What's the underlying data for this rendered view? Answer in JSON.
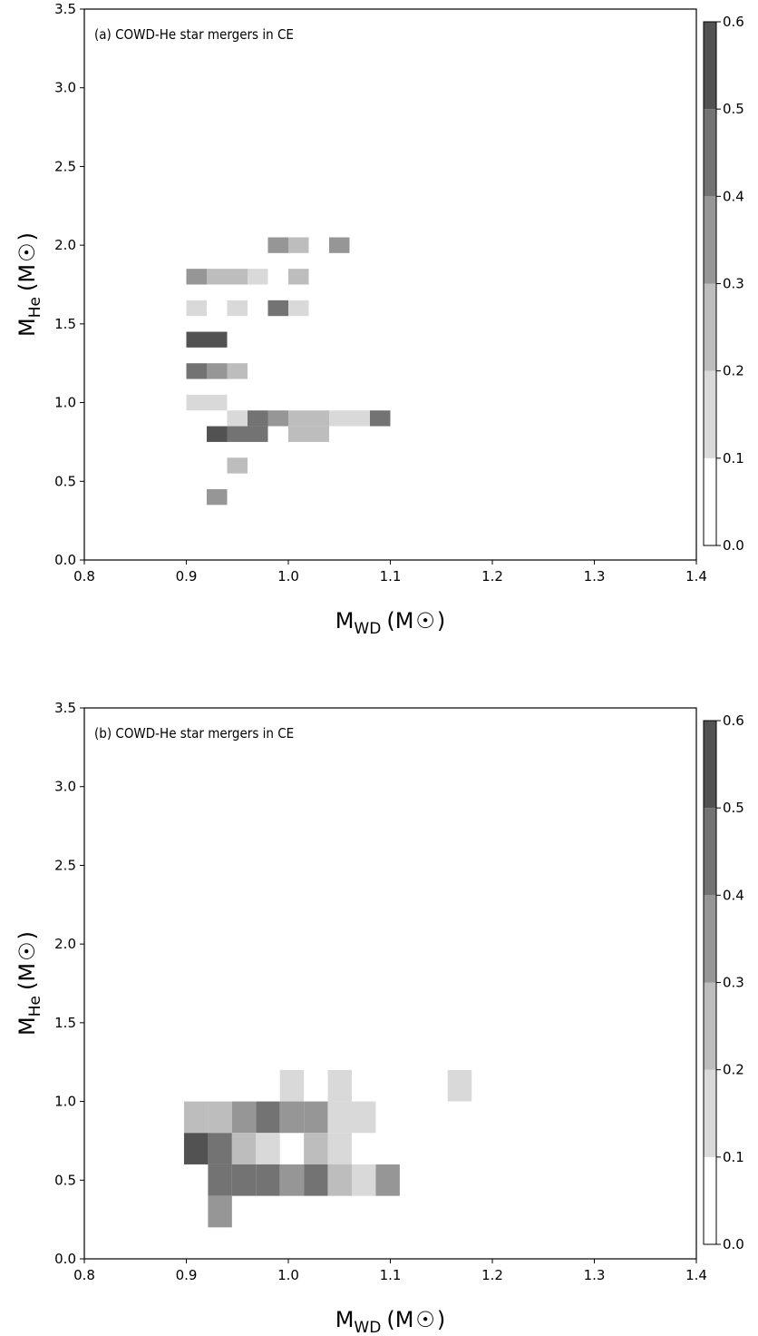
{
  "colorbar": {
    "levels": [
      0.0,
      0.1,
      0.2,
      0.3,
      0.4,
      0.5,
      0.6
    ],
    "tick_labels": [
      "0.0",
      "0.1",
      "0.2",
      "0.3",
      "0.4",
      "0.5",
      "0.6"
    ],
    "colors": [
      "#ffffff",
      "#d9d9d9",
      "#bdbdbd",
      "#969696",
      "#737373",
      "#525252",
      "#000000"
    ]
  },
  "chart_data": [
    {
      "type": "heatmap",
      "title": "(a) COWD-He star mergers in CE",
      "xlabel": "M",
      "xlabel_sub": "WD",
      "xlabel_unit": "(M",
      "ylabel": "M",
      "ylabel_sub": "He",
      "ylabel_unit": "(M",
      "xlim": [
        0.8,
        1.4
      ],
      "ylim": [
        0.0,
        3.5
      ],
      "x_ticks": [
        "0.8",
        "0.9",
        "1.0",
        "1.1",
        "1.2",
        "1.3",
        "1.4"
      ],
      "y_ticks": [
        "0.0",
        "0.5",
        "1.0",
        "1.5",
        "2.0",
        "2.5",
        "3.0",
        "3.5"
      ],
      "x_bin_width": 0.02,
      "y_bin_height": 0.1,
      "cells": [
        {
          "x": 0.99,
          "y": 2.0,
          "v": 0.35
        },
        {
          "x": 1.01,
          "y": 2.0,
          "v": 0.25
        },
        {
          "x": 1.05,
          "y": 2.0,
          "v": 0.35
        },
        {
          "x": 0.91,
          "y": 1.8,
          "v": 0.35
        },
        {
          "x": 0.93,
          "y": 1.8,
          "v": 0.25
        },
        {
          "x": 0.95,
          "y": 1.8,
          "v": 0.25
        },
        {
          "x": 0.97,
          "y": 1.8,
          "v": 0.15
        },
        {
          "x": 1.01,
          "y": 1.8,
          "v": 0.25
        },
        {
          "x": 0.91,
          "y": 1.6,
          "v": 0.15
        },
        {
          "x": 0.95,
          "y": 1.6,
          "v": 0.15
        },
        {
          "x": 0.99,
          "y": 1.6,
          "v": 0.45
        },
        {
          "x": 1.01,
          "y": 1.6,
          "v": 0.15
        },
        {
          "x": 0.91,
          "y": 1.4,
          "v": 0.55
        },
        {
          "x": 0.93,
          "y": 1.4,
          "v": 0.55
        },
        {
          "x": 0.91,
          "y": 1.2,
          "v": 0.4
        },
        {
          "x": 0.93,
          "y": 1.2,
          "v": 0.35
        },
        {
          "x": 0.95,
          "y": 1.2,
          "v": 0.25
        },
        {
          "x": 0.91,
          "y": 1.0,
          "v": 0.15
        },
        {
          "x": 0.93,
          "y": 1.0,
          "v": 0.15
        },
        {
          "x": 0.95,
          "y": 0.9,
          "v": 0.15
        },
        {
          "x": 0.97,
          "y": 0.9,
          "v": 0.4
        },
        {
          "x": 0.99,
          "y": 0.9,
          "v": 0.35
        },
        {
          "x": 1.01,
          "y": 0.9,
          "v": 0.25
        },
        {
          "x": 1.03,
          "y": 0.9,
          "v": 0.25
        },
        {
          "x": 1.05,
          "y": 0.9,
          "v": 0.15
        },
        {
          "x": 1.07,
          "y": 0.9,
          "v": 0.15
        },
        {
          "x": 1.09,
          "y": 0.9,
          "v": 0.4
        },
        {
          "x": 0.93,
          "y": 0.8,
          "v": 0.55
        },
        {
          "x": 0.95,
          "y": 0.8,
          "v": 0.4
        },
        {
          "x": 0.97,
          "y": 0.8,
          "v": 0.45
        },
        {
          "x": 1.01,
          "y": 0.8,
          "v": 0.25
        },
        {
          "x": 1.03,
          "y": 0.8,
          "v": 0.25
        },
        {
          "x": 0.95,
          "y": 0.6,
          "v": 0.25
        },
        {
          "x": 0.93,
          "y": 0.4,
          "v": 0.35
        }
      ]
    },
    {
      "type": "heatmap",
      "title": "(b) COWD-He star mergers in CE",
      "xlabel": "M",
      "xlabel_sub": "WD",
      "xlabel_unit": "(M",
      "ylabel": "M",
      "ylabel_sub": "He",
      "ylabel_unit": "(M",
      "xlim": [
        0.8,
        1.4
      ],
      "ylim": [
        0.0,
        3.5
      ],
      "x_ticks": [
        "0.8",
        "0.9",
        "1.0",
        "1.1",
        "1.2",
        "1.3",
        "1.4"
      ],
      "y_ticks": [
        "0.0",
        "0.5",
        "1.0",
        "1.5",
        "2.0",
        "2.5",
        "3.0",
        "3.5"
      ],
      "x_bin_width": 0.0235,
      "y_bin_height": 0.2,
      "cells": [
        {
          "x": 1.0035,
          "y": 1.1,
          "v": 0.15
        },
        {
          "x": 1.0505,
          "y": 1.1,
          "v": 0.15
        },
        {
          "x": 1.168,
          "y": 1.1,
          "v": 0.15
        },
        {
          "x": 0.9095,
          "y": 0.9,
          "v": 0.25
        },
        {
          "x": 0.933,
          "y": 0.9,
          "v": 0.25
        },
        {
          "x": 0.9565,
          "y": 0.9,
          "v": 0.35
        },
        {
          "x": 0.98,
          "y": 0.9,
          "v": 0.4
        },
        {
          "x": 1.0035,
          "y": 0.9,
          "v": 0.35
        },
        {
          "x": 1.027,
          "y": 0.9,
          "v": 0.3
        },
        {
          "x": 1.0505,
          "y": 0.9,
          "v": 0.15
        },
        {
          "x": 1.074,
          "y": 0.9,
          "v": 0.15
        },
        {
          "x": 0.9095,
          "y": 0.7,
          "v": 0.55
        },
        {
          "x": 0.933,
          "y": 0.7,
          "v": 0.45
        },
        {
          "x": 0.9565,
          "y": 0.7,
          "v": 0.25
        },
        {
          "x": 0.98,
          "y": 0.7,
          "v": 0.15
        },
        {
          "x": 1.027,
          "y": 0.7,
          "v": 0.25
        },
        {
          "x": 1.0505,
          "y": 0.7,
          "v": 0.15
        },
        {
          "x": 0.933,
          "y": 0.5,
          "v": 0.45
        },
        {
          "x": 0.9565,
          "y": 0.5,
          "v": 0.4
        },
        {
          "x": 0.98,
          "y": 0.5,
          "v": 0.4
        },
        {
          "x": 1.0035,
          "y": 0.5,
          "v": 0.35
        },
        {
          "x": 1.027,
          "y": 0.5,
          "v": 0.4
        },
        {
          "x": 1.0505,
          "y": 0.5,
          "v": 0.25
        },
        {
          "x": 1.074,
          "y": 0.5,
          "v": 0.15
        },
        {
          "x": 1.0975,
          "y": 0.5,
          "v": 0.35
        },
        {
          "x": 0.933,
          "y": 0.3,
          "v": 0.35
        }
      ]
    }
  ]
}
